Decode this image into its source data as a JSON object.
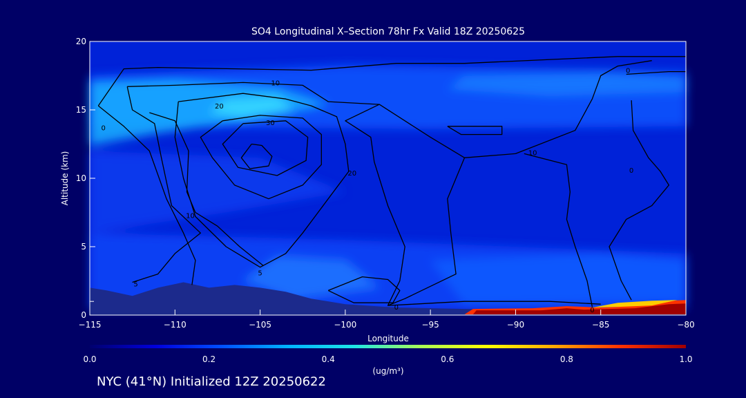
{
  "footer": {
    "text": "NYC (41°N) Initialized 12Z 20250622"
  },
  "colors": {
    "background": "#000066",
    "colormap": [
      "#00006e",
      "#0000dc",
      "#0050ff",
      "#00b4ff",
      "#1ee6e6",
      "#aaff55",
      "#ffff00",
      "#ffaa00",
      "#ff3200",
      "#a00000"
    ],
    "terrain": "#1c2a8c",
    "contour": "#000000"
  },
  "chart_data": {
    "type": "heatmap",
    "title": "SO4 Longitudinal X–Section 78hr  Fx Valid 18Z 20250625",
    "xlabel": "Longitude",
    "ylabel": "Altitude (km)",
    "xlim": [
      -115,
      -80
    ],
    "ylim": [
      0,
      20
    ],
    "xticks": [
      -115,
      -110,
      -105,
      -100,
      -95,
      -90,
      -85,
      -80
    ],
    "xtick_labels": [
      "−115",
      "−110",
      "−105",
      "−100",
      "−95",
      "−90",
      "−85",
      "−80"
    ],
    "yticks": [
      0,
      5,
      10,
      15,
      20
    ],
    "ytick_labels": [
      "0",
      "5",
      "10",
      "15",
      "20"
    ],
    "colorbar": {
      "label": "(ug/m³)",
      "range": [
        0,
        1
      ],
      "ticks": [
        0.0,
        0.2,
        0.4,
        0.6,
        0.8,
        1.0
      ],
      "tick_labels": [
        "0.0",
        "0.2",
        "0.4",
        "0.6",
        "0.8",
        "1.0"
      ]
    },
    "contour_labels": [
      {
        "text": "10",
        "x": -104.1,
        "y": 17.0
      },
      {
        "text": "20",
        "x": -107.4,
        "y": 15.3
      },
      {
        "text": "30",
        "x": -104.4,
        "y": 14.1
      },
      {
        "text": "0",
        "x": -114.2,
        "y": 13.7
      },
      {
        "text": "10",
        "x": -89.0,
        "y": 11.9
      },
      {
        "text": "20",
        "x": -99.6,
        "y": 10.4
      },
      {
        "text": "0",
        "x": -83.2,
        "y": 10.6
      },
      {
        "text": "0",
        "x": -83.4,
        "y": 17.9
      },
      {
        "text": "10",
        "x": -109.1,
        "y": 7.3
      },
      {
        "text": "5",
        "x": -112.3,
        "y": 2.3
      },
      {
        "text": "5",
        "x": -105.0,
        "y": 3.1
      },
      {
        "text": "0",
        "x": -97.0,
        "y": 0.6
      },
      {
        "text": "0",
        "x": -85.5,
        "y": 0.4
      }
    ]
  }
}
